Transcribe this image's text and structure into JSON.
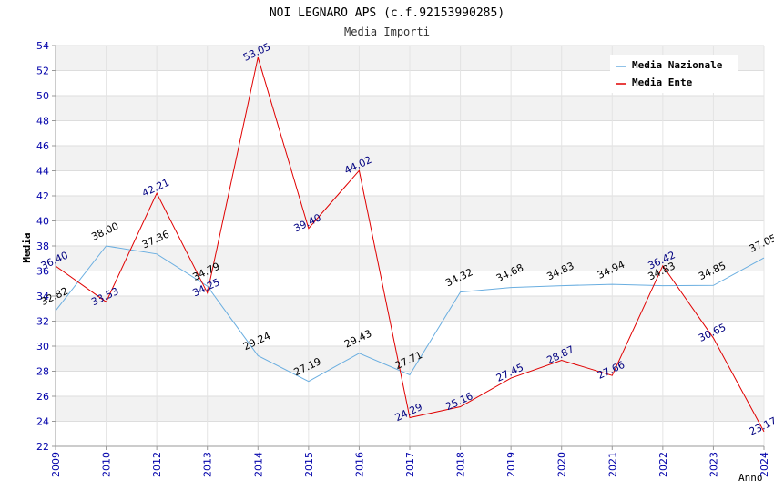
{
  "chart_data": {
    "type": "line",
    "title": "NOI LEGNARO APS (c.f.92153990285)",
    "subtitle": "Media Importi",
    "xlabel": "Anno",
    "ylabel": "Media",
    "ylim": [
      22,
      54
    ],
    "yticks": [
      "22",
      "24",
      "26",
      "28",
      "30",
      "32",
      "34",
      "36",
      "38",
      "40",
      "42",
      "44",
      "46",
      "48",
      "50",
      "52",
      "54"
    ],
    "categories": [
      "2009",
      "2010",
      "2012",
      "2013",
      "2014",
      "2015",
      "2016",
      "2017",
      "2018",
      "2019",
      "2020",
      "2021",
      "2022",
      "2023",
      "2024"
    ],
    "grid": true,
    "legend_position": "top-right",
    "series": [
      {
        "name": "Media Nazionale",
        "color": "#6aaee0",
        "label_color": "#000000",
        "values": [
          32.82,
          38.0,
          37.36,
          34.79,
          29.24,
          27.19,
          29.43,
          27.71,
          34.32,
          34.68,
          34.83,
          34.94,
          34.83,
          34.85,
          37.05
        ],
        "labels": [
          "32.82",
          "38.00",
          "37.36",
          "34.79",
          "29.24",
          "27.19",
          "29.43",
          "27.71",
          "34.32",
          "34.68",
          "34.83",
          "34.94",
          "34.83",
          "34.85",
          "37.05"
        ]
      },
      {
        "name": "Media Ente",
        "color": "#e00000",
        "label_color": "#000080",
        "values": [
          36.4,
          33.53,
          42.21,
          34.25,
          53.05,
          39.4,
          44.02,
          24.29,
          25.16,
          27.45,
          28.87,
          27.66,
          36.42,
          30.65,
          23.17
        ],
        "labels": [
          "36.40",
          "33.53",
          "42.21",
          "34.25",
          "53.05",
          "39.40",
          "44.02",
          "24.29",
          "25.16",
          "27.45",
          "28.87",
          "27.66",
          "36.42",
          "30.65",
          "23.17"
        ]
      }
    ]
  }
}
